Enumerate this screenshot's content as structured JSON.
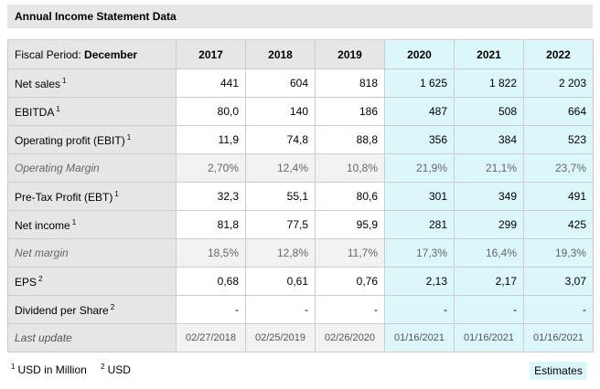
{
  "title": "Annual Income Statement Data",
  "header": {
    "period_prefix": "Fiscal Period: ",
    "period_value": "December",
    "years": [
      "2017",
      "2018",
      "2019",
      "2020",
      "2021",
      "2022"
    ]
  },
  "rows": [
    {
      "label": "Net sales",
      "sup": "1",
      "values": [
        "441",
        "604",
        "818",
        "1 625",
        "1 822",
        "2 203"
      ]
    },
    {
      "label": "EBITDA",
      "sup": "1",
      "values": [
        "80,0",
        "140",
        "186",
        "487",
        "508",
        "664"
      ]
    },
    {
      "label": "Operating profit (EBIT)",
      "sup": "1",
      "values": [
        "11,9",
        "74,8",
        "88,8",
        "356",
        "384",
        "523"
      ]
    },
    {
      "label": "Operating Margin",
      "sup": "",
      "values": [
        "2,70%",
        "12,4%",
        "10,8%",
        "21,9%",
        "21,1%",
        "23,7%"
      ]
    },
    {
      "label": "Pre-Tax Profit (EBT)",
      "sup": "1",
      "values": [
        "32,3",
        "55,1",
        "80,6",
        "301",
        "349",
        "491"
      ]
    },
    {
      "label": "Net income",
      "sup": "1",
      "values": [
        "81,8",
        "77,5",
        "95,9",
        "281",
        "299",
        "425"
      ]
    },
    {
      "label": "Net margin",
      "sup": "",
      "values": [
        "18,5%",
        "12,8%",
        "11,7%",
        "17,3%",
        "16,4%",
        "19,3%"
      ]
    },
    {
      "label": "EPS",
      "sup": "2",
      "values": [
        "0,68",
        "0,61",
        "0,76",
        "2,13",
        "2,17",
        "3,07"
      ]
    },
    {
      "label": "Dividend per Share",
      "sup": "2",
      "values": [
        "-",
        "-",
        "-",
        "-",
        "-",
        "-"
      ]
    },
    {
      "label": "Last update",
      "sup": "",
      "values": [
        "02/27/2018",
        "02/25/2019",
        "02/26/2020",
        "01/16/2021",
        "01/16/2021",
        "01/16/2021"
      ]
    }
  ],
  "footnotes": [
    {
      "sup": "1",
      "text": "USD in Million"
    },
    {
      "sup": "2",
      "text": "USD"
    }
  ],
  "estimates_label": "Estimates",
  "colors": {
    "estimate_bg": "#dcf7f9",
    "header_bg": "#e6e6e6",
    "border": "#cccccc"
  }
}
